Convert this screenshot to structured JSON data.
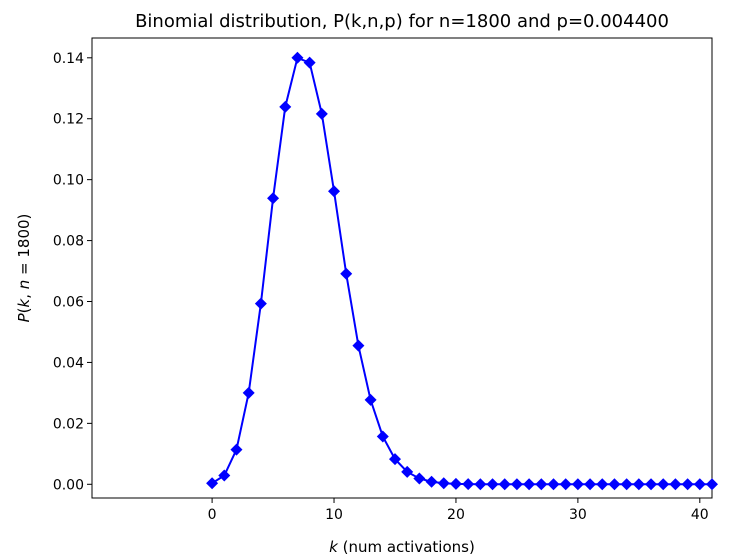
{
  "chart_data": {
    "type": "line",
    "title": "Binomial distribution, P(k,n,p) for n=1800 and p=0.004400",
    "xlabel": {
      "var": "k",
      "rest": " (num activations)"
    },
    "ylabel": {
      "p": "P",
      "open": "(",
      "k": "k",
      "sep": ", ",
      "n": "n",
      "eq": " = 1800",
      "close": ")"
    },
    "xlim": [
      -9.85,
      41.0
    ],
    "ylim": [
      -0.0045,
      0.1465
    ],
    "xticks": [
      0,
      10,
      20,
      30,
      40
    ],
    "xtick_labels": [
      "0",
      "10",
      "20",
      "30",
      "40"
    ],
    "yticks": [
      0.0,
      0.02,
      0.04,
      0.06,
      0.08,
      0.1,
      0.12,
      0.14
    ],
    "ytick_labels": [
      "0.00",
      "0.02",
      "0.04",
      "0.06",
      "0.08",
      "0.10",
      "0.12",
      "0.14"
    ],
    "grid": false,
    "series": [
      {
        "color": "#0000ff",
        "marker": "diamond",
        "x": [
          0,
          1,
          2,
          3,
          4,
          5,
          6,
          7,
          8,
          9,
          10,
          11,
          12,
          13,
          14,
          15,
          16,
          17,
          18,
          19,
          20,
          21,
          22,
          23,
          24,
          25,
          26,
          27,
          28,
          29,
          30,
          31,
          32,
          33,
          34,
          35,
          36,
          37,
          38,
          39,
          40,
          41
        ],
        "y": [
          0.00036,
          0.00288,
          0.0114,
          0.03,
          0.0593,
          0.0939,
          0.1239,
          0.14,
          0.1384,
          0.1216,
          0.0962,
          0.0691,
          0.0455,
          0.0277,
          0.0157,
          0.00827,
          0.00409,
          0.0019,
          0.00084,
          0.00035,
          0.00014,
          5e-05,
          2e-05,
          1e-05,
          0,
          0,
          0,
          0,
          0,
          0,
          0,
          0,
          0,
          0,
          0,
          0,
          0,
          0,
          0,
          0,
          0,
          0
        ]
      }
    ]
  }
}
